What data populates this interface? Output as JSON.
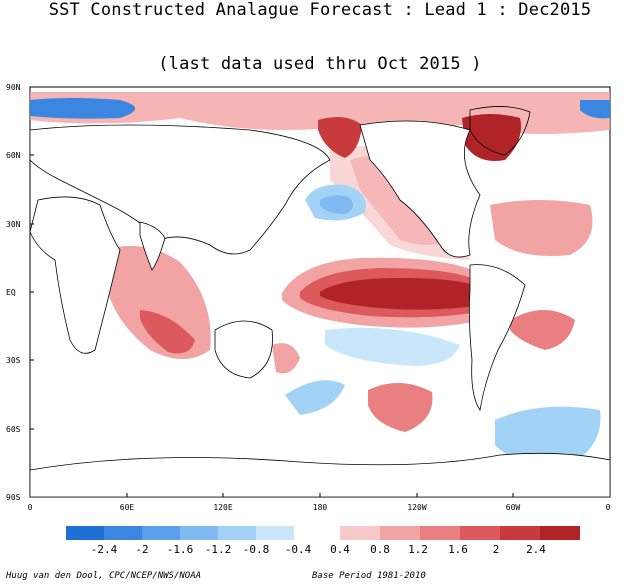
{
  "title_line1": "SST Constructed Analague Forecast : Lead 1 : Dec2015",
  "title_line2": "(last data used thru Oct 2015 )",
  "lat_ticks": [
    "90N",
    "60N",
    "30N",
    "EQ",
    "30S",
    "60S",
    "90S"
  ],
  "lon_ticks": [
    "0",
    "60E",
    "120E",
    "180",
    "120W",
    "60W",
    "0"
  ],
  "colorbar": {
    "labels": [
      "-2.4",
      "-2",
      "-1.6",
      "-1.2",
      "-0.8",
      "-0.4",
      "0.4",
      "0.8",
      "1.2",
      "1.6",
      "2",
      "2.4"
    ],
    "neg_colors": [
      "#1e6fd6",
      "#3a86e0",
      "#5aa0ea",
      "#7fbaf2",
      "#a3d2f7",
      "#c8e7fb"
    ],
    "pos_colors": [
      "#f8c9c9",
      "#f2a3a3",
      "#e97f80",
      "#dc5a5b",
      "#c83a3c",
      "#b02428"
    ]
  },
  "credit": "Huug van den Dool, CPC/NCEP/NWS/NOAA",
  "base_period": "Base Period 1981-2010"
}
